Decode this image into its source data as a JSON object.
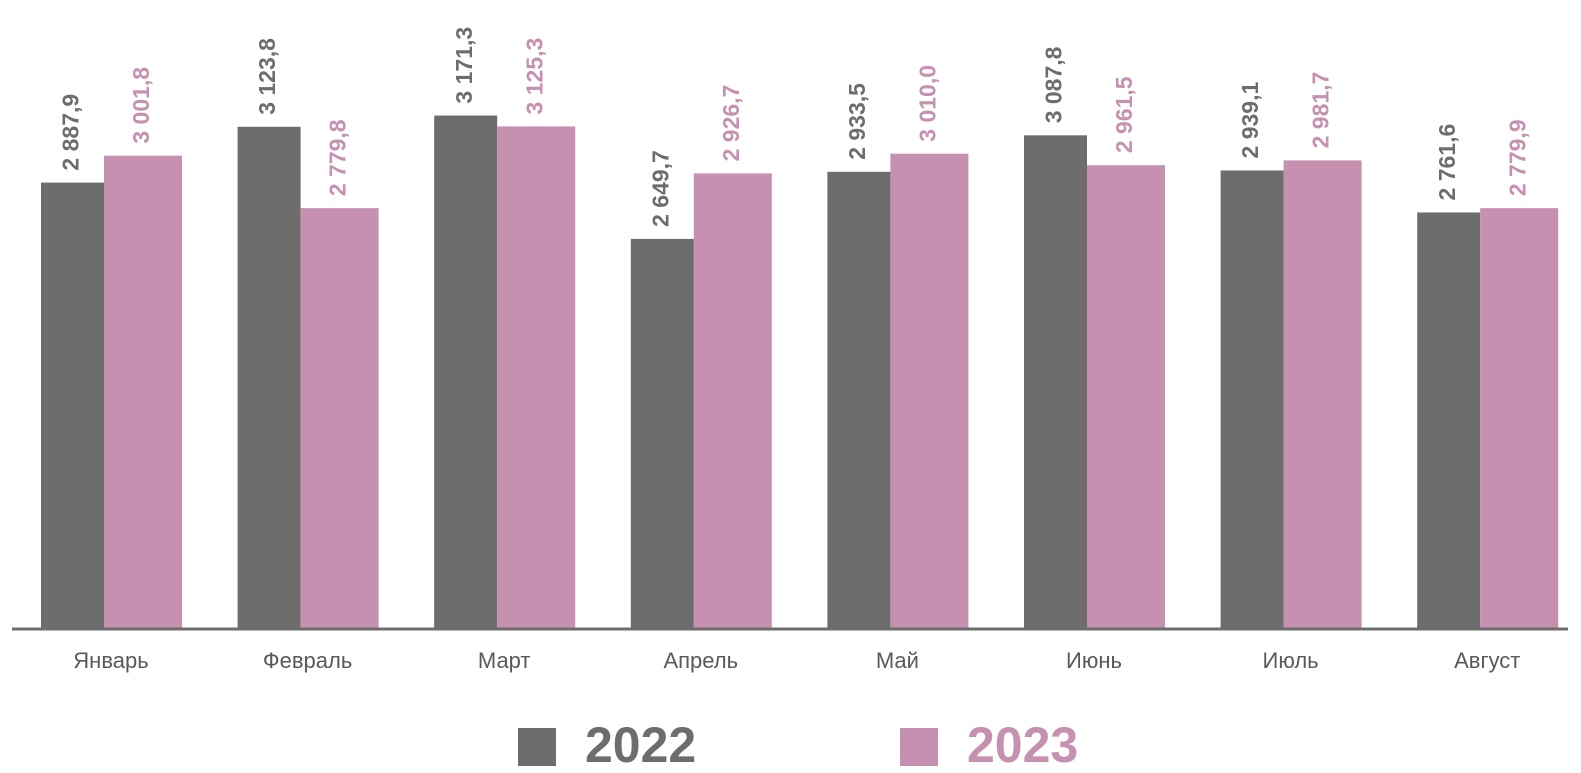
{
  "chart_data": {
    "type": "bar",
    "categories": [
      "Январь",
      "Февраль",
      "Март",
      "Апрель",
      "Май",
      "Июнь",
      "Июль",
      "Август"
    ],
    "series": [
      {
        "name": "2022",
        "color": "#6d6d6d",
        "values": [
          2887.9,
          3123.8,
          3171.3,
          2649.7,
          2933.5,
          3087.8,
          2939.1,
          2761.6
        ],
        "value_labels": [
          "2 887,9",
          "3 123,8",
          "3 171,3",
          "2 649,7",
          "2 933,5",
          "3 087,8",
          "2 939,1",
          "2 761,6"
        ]
      },
      {
        "name": "2023",
        "color": "#c690b0",
        "values": [
          3001.8,
          2779.8,
          3125.3,
          2926.7,
          3010.0,
          2961.5,
          2981.7,
          2779.9
        ],
        "value_labels": [
          "3 001,8",
          "2 779,8",
          "3 125,3",
          "2 926,7",
          "3 010,0",
          "2 961,5",
          "2 981,7",
          "2 779,9"
        ]
      }
    ],
    "ylim": [
      1000,
      3660
    ],
    "legend": "bottom"
  }
}
